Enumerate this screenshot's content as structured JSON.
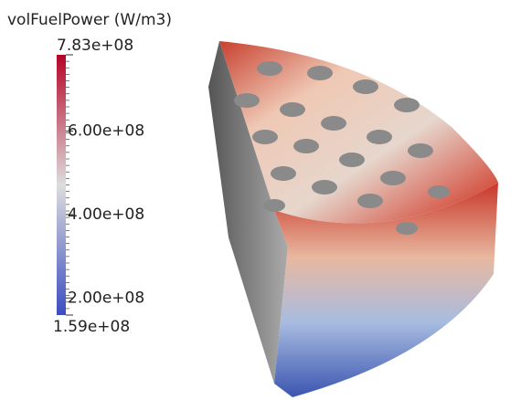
{
  "colorbar": {
    "title": "volFuelPower (W/m3)",
    "lim": [
      159000000,
      783000000
    ],
    "ticks": [
      {
        "value": 783000000,
        "label": "7.83e+08"
      },
      {
        "value": 600000000,
        "label": "6.00e+08"
      },
      {
        "value": 400000000,
        "label": "4.00e+08"
      },
      {
        "value": 200000000,
        "label": "2.00e+08"
      },
      {
        "value": 159000000,
        "label": "1.59e+08"
      }
    ]
  }
}
